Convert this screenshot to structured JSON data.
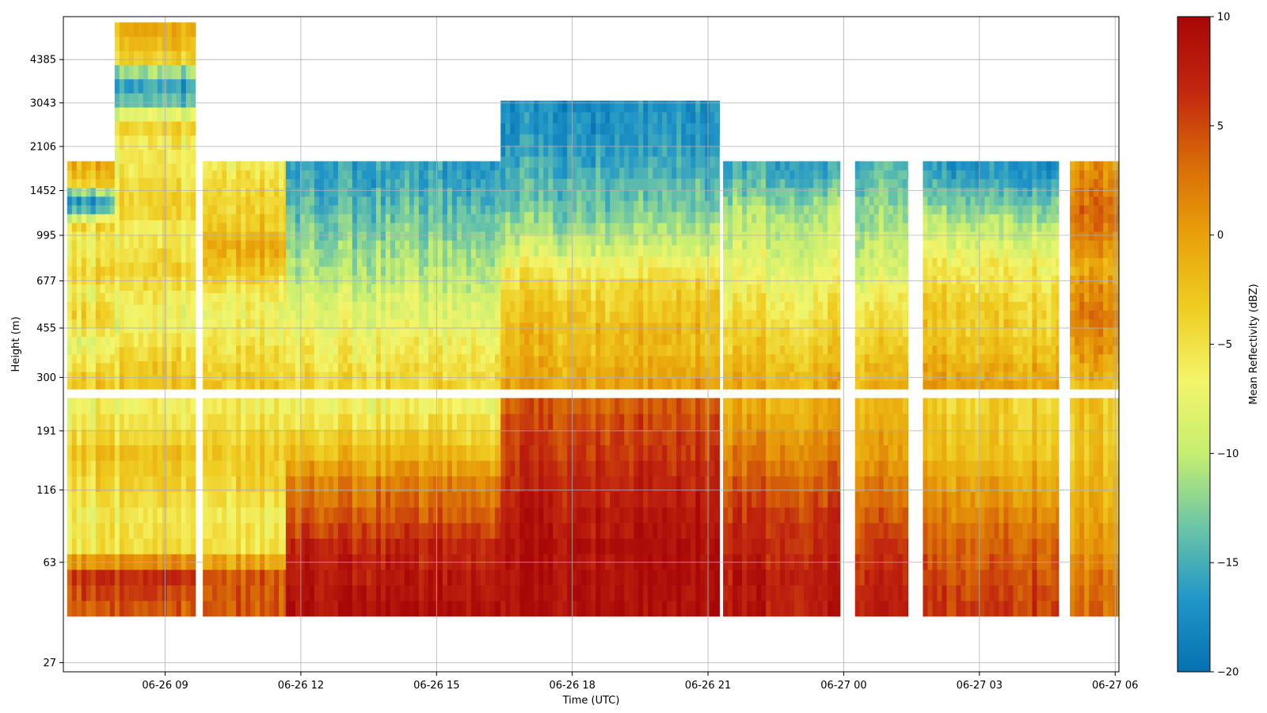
{
  "chart_data": {
    "type": "heatmap",
    "title": "",
    "xlabel": "Time (UTC)",
    "ylabel": "Height (m)",
    "x_range": [
      "06-26 06:45",
      "06-27 06:05"
    ],
    "y_scale": "log",
    "y_range": [
      25,
      6300
    ],
    "x_ticks": [
      {
        "label": "06-26 09",
        "time": "06-26 09:00"
      },
      {
        "label": "06-26 12",
        "time": "06-26 12:00"
      },
      {
        "label": "06-26 15",
        "time": "06-26 15:00"
      },
      {
        "label": "06-26 18",
        "time": "06-26 18:00"
      },
      {
        "label": "06-26 21",
        "time": "06-26 21:00"
      },
      {
        "label": "06-27 00",
        "time": "06-27 00:00"
      },
      {
        "label": "06-27 03",
        "time": "06-27 03:00"
      },
      {
        "label": "06-27 06",
        "time": "06-27 06:00"
      }
    ],
    "y_ticks": [
      27,
      63,
      116,
      191,
      300,
      455,
      677,
      995,
      1452,
      2106,
      3043,
      4385
    ],
    "grid": true,
    "colorbar": {
      "label": "Mean Reflectivity (dBZ)",
      "min": -20,
      "max": 10,
      "ticks": [
        10,
        5,
        0,
        -5,
        -10,
        -15,
        -20
      ],
      "tick_labels": [
        "10",
        "5",
        "0",
        "−5",
        "−10",
        "−15",
        "−20"
      ],
      "colormap": [
        "#0571b0",
        "#2196c8",
        "#6cc6a6",
        "#c6ee70",
        "#f3f56a",
        "#efcd22",
        "#e8a10a",
        "#d86a08",
        "#c1260f",
        "#a80707"
      ]
    },
    "gap_height_range_m": [
      252,
      272
    ],
    "data_segments": [
      {
        "start": "06-26 06:50",
        "end": "06-26 09:40",
        "bottom_m": 40,
        "top_m": 1860,
        "upper_top_m": 6000,
        "upper_start": "06-26 07:50",
        "upper_end": "06-26 09:35",
        "profile_lower": [
          4,
          6,
          -5,
          -6,
          -4,
          -3,
          -6,
          -7
        ],
        "profile_upper": [
          -3,
          -4,
          -6,
          -8,
          -6,
          -4,
          -5,
          -7,
          -4,
          -5,
          -6,
          -6,
          -4,
          -14,
          -17,
          -4,
          -2,
          0
        ]
      },
      {
        "start": "06-26 09:50",
        "end": "06-26 11:40",
        "bottom_m": 40,
        "top_m": 1860,
        "upper_top_m": 1860,
        "profile_lower": [
          4,
          4,
          -5,
          -6,
          -4,
          -3,
          -5,
          -7
        ],
        "profile_upper": [
          -3,
          -4,
          -5,
          -6,
          -7,
          -6,
          -4,
          -2,
          -1,
          -3,
          -4,
          -4,
          -5,
          -7
        ]
      },
      {
        "start": "06-26 11:40",
        "end": "06-26 16:25",
        "bottom_m": 40,
        "top_m": 1860,
        "upper_top_m": 1860,
        "profile_lower": [
          9,
          8,
          7,
          4,
          2,
          -2,
          -5,
          -8
        ],
        "profile_upper": [
          -4,
          -5,
          -6,
          -7,
          -8,
          -9,
          -10,
          -11,
          -12,
          -13,
          -14,
          -15,
          -16,
          -16
        ]
      },
      {
        "start": "06-26 16:25",
        "end": "06-26 21:15",
        "bottom_m": 40,
        "top_m": 2800,
        "upper_top_m": 3100,
        "profile_lower": [
          9,
          9,
          9,
          8,
          7,
          6,
          5,
          3
        ],
        "profile_upper": [
          0,
          -1,
          -2,
          -2,
          -3,
          -4,
          -6,
          -9,
          -11,
          -13,
          -14,
          -15,
          -16,
          -17,
          -17,
          -18
        ]
      },
      {
        "start": "06-26 21:20",
        "end": "06-26 23:55",
        "bottom_m": 40,
        "top_m": 1860,
        "upper_top_m": 1860,
        "profile_lower": [
          8,
          8,
          7,
          6,
          4,
          2,
          0,
          -2
        ],
        "profile_upper": [
          -1,
          -2,
          -3,
          -4,
          -5,
          -6,
          -7,
          -8,
          -9,
          -10,
          -11,
          -13,
          -15,
          -16
        ]
      },
      {
        "start": "06-27 00:15",
        "end": "06-27 01:25",
        "bottom_m": 40,
        "top_m": 1860,
        "upper_top_m": 1860,
        "profile_lower": [
          8,
          7,
          6,
          4,
          2,
          0,
          -1,
          -2
        ],
        "profile_upper": [
          -1,
          -2,
          -3,
          -4,
          -5,
          -6,
          -8,
          -9,
          -10,
          -11,
          -12,
          -13,
          -14,
          -14
        ]
      },
      {
        "start": "06-27 01:45",
        "end": "06-27 04:45",
        "bottom_m": 40,
        "top_m": 1860,
        "upper_top_m": 1860,
        "profile_lower": [
          6,
          5,
          4,
          2,
          0,
          -2,
          -3,
          -4
        ],
        "profile_upper": [
          0,
          -1,
          -2,
          -3,
          -3,
          -4,
          -5,
          -6,
          -8,
          -10,
          -12,
          -14,
          -16,
          -17
        ]
      },
      {
        "start": "06-27 05:00",
        "end": "06-27 06:05",
        "bottom_m": 40,
        "top_m": 1860,
        "upper_top_m": 1860,
        "profile_lower": [
          3,
          2,
          0,
          -1,
          -2,
          -3,
          -3,
          -3
        ],
        "profile_upper": [
          -2,
          -1,
          0,
          1,
          2,
          1,
          0,
          -1,
          1,
          2,
          3,
          2,
          1,
          0
        ]
      }
    ]
  }
}
